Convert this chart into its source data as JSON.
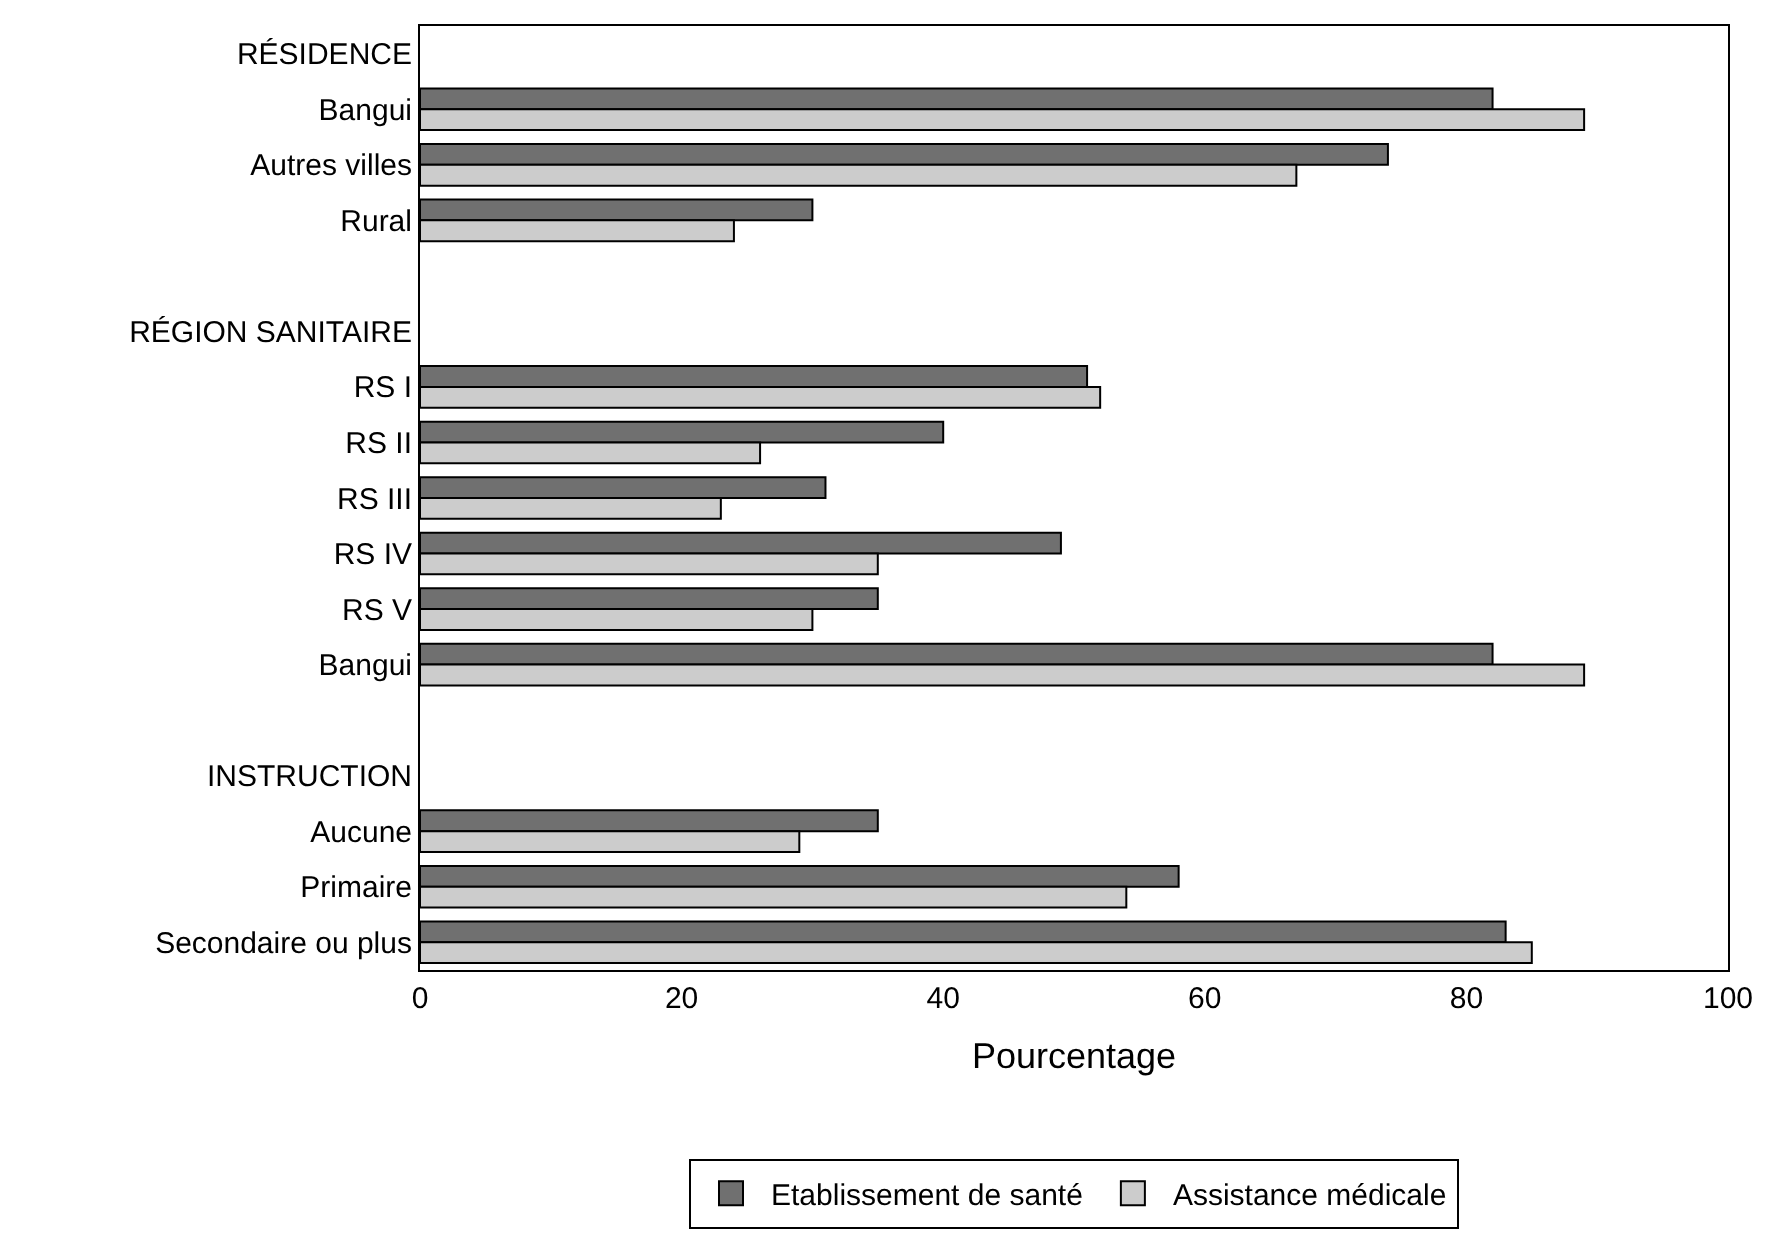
{
  "chart_data": {
    "type": "bar",
    "orientation": "horizontal",
    "xlabel": "Pourcentage",
    "categories": [
      "RÉSIDENCE",
      "Bangui",
      "Autres villes",
      "Rural",
      null,
      "RÉGION SANITAIRE",
      "RS I",
      "RS II",
      "RS III",
      "RS IV",
      "RS V",
      "Bangui",
      null,
      "INSTRUCTION",
      "Aucune",
      "Primaire",
      "Secondaire ou plus"
    ],
    "series": [
      {
        "name": "Etablissement de santé",
        "color": "#707070",
        "values": [
          null,
          82,
          74,
          30,
          null,
          null,
          51,
          40,
          31,
          49,
          35,
          82,
          null,
          null,
          35,
          58,
          83
        ]
      },
      {
        "name": "Assistance médicale",
        "color": "#cccccc",
        "values": [
          null,
          89,
          67,
          24,
          null,
          null,
          52,
          26,
          23,
          35,
          30,
          89,
          null,
          null,
          29,
          54,
          85
        ]
      }
    ],
    "xlim": [
      0,
      100
    ],
    "xticks": [
      0,
      20,
      40,
      60,
      80,
      100
    ],
    "legend": "bottom"
  }
}
